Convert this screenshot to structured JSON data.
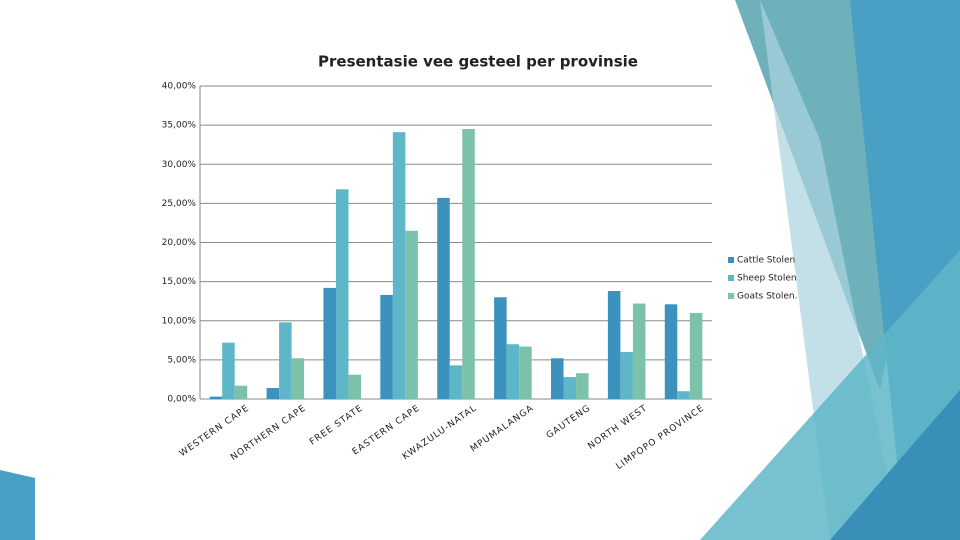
{
  "chart_data": {
    "type": "bar",
    "title": "Presentasie vee gesteel per provinsie",
    "categories": [
      "WESTERN CAPE",
      "NORTHERN CAPE",
      "FREE STATE",
      "EASTERN CAPE",
      "KWAZULU-NATAL",
      "MPUMALANGA",
      "GAUTENG",
      "NORTH WEST",
      "LIMPOPO PROVINCE"
    ],
    "series": [
      {
        "name": "Cattle Stolen",
        "color": "#3a92bd",
        "values": [
          0.3,
          1.4,
          14.2,
          13.3,
          25.7,
          13.0,
          5.2,
          13.8,
          12.1
        ]
      },
      {
        "name": "Sheep Stolen",
        "color": "#5db7c9",
        "values": [
          7.2,
          9.8,
          26.8,
          34.1,
          4.3,
          7.0,
          2.8,
          6.0,
          1.0
        ]
      },
      {
        "name": "Goats Stolen.",
        "color": "#7cc1aa",
        "values": [
          1.7,
          5.2,
          3.1,
          21.5,
          34.5,
          6.7,
          3.3,
          12.2,
          11.0
        ]
      }
    ],
    "ylim": [
      0,
      40
    ],
    "yticks": [
      {
        "value": 0,
        "label": "0,00%"
      },
      {
        "value": 5,
        "label": "5,00%"
      },
      {
        "value": 10,
        "label": "10,00%"
      },
      {
        "value": 15,
        "label": "15,00%"
      },
      {
        "value": 20,
        "label": "20,00%"
      },
      {
        "value": 25,
        "label": "25,00%"
      },
      {
        "value": 30,
        "label": "30,00%"
      },
      {
        "value": 35,
        "label": "35,00%"
      },
      {
        "value": 40,
        "label": "40,00%"
      }
    ],
    "grid": true,
    "legend": "right"
  }
}
